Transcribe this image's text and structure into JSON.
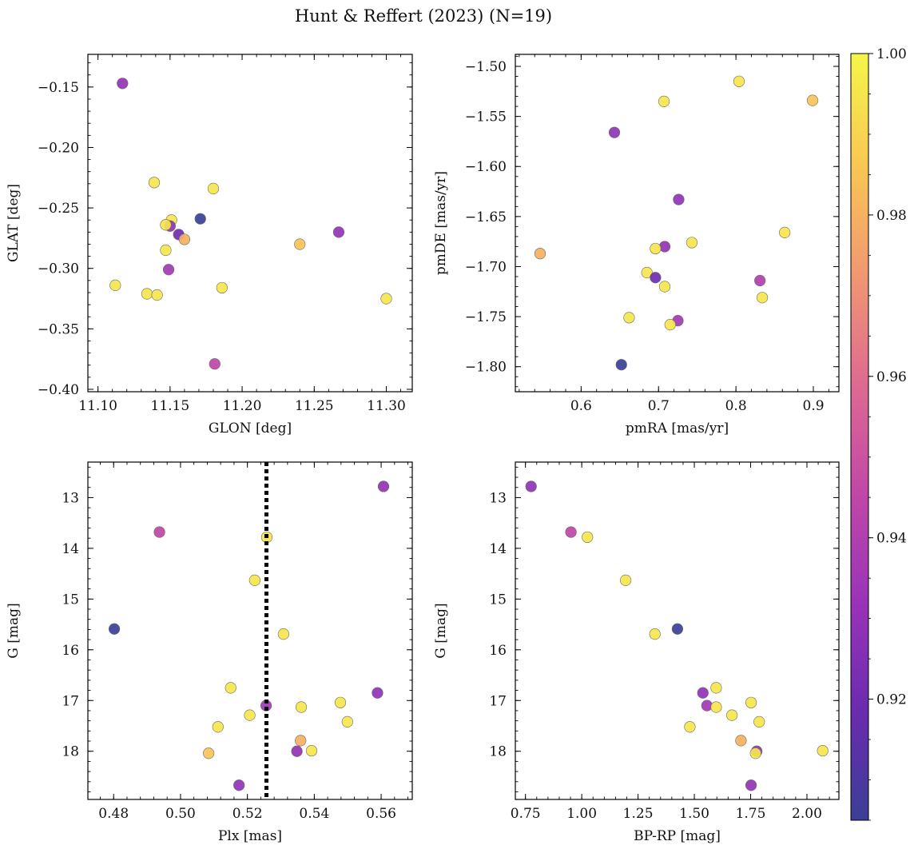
{
  "figure": {
    "title": "Hunt & Reffert (2023) (N=19)"
  },
  "colorbar": {
    "cmap": "plasma",
    "vmin": 0.905,
    "vmax": 1.0,
    "ticks": [
      0.92,
      0.94,
      0.96,
      0.98,
      1.0
    ],
    "tick_labels": [
      "0.92",
      "0.94",
      "0.96",
      "0.98",
      "1.00"
    ]
  },
  "chart_data": [
    {
      "type": "scatter",
      "panel": "top-left",
      "xlabel": "GLON [deg]",
      "ylabel": "GLAT [deg]",
      "xlim": [
        11.093,
        11.318
      ],
      "ylim": [
        -0.402,
        -0.123
      ],
      "xticks": [
        11.1,
        11.15,
        11.2,
        11.25,
        11.3
      ],
      "xtick_labels": [
        "11.10",
        "11.15",
        "11.20",
        "11.25",
        "11.30"
      ],
      "yticks": [
        -0.4,
        -0.35,
        -0.3,
        -0.25,
        -0.2,
        -0.15
      ],
      "ytick_labels": [
        "−0.40",
        "−0.35",
        "−0.30",
        "−0.25",
        "−0.20",
        "−0.15"
      ],
      "x": [
        11.117,
        11.139,
        11.18,
        11.151,
        11.15,
        11.147,
        11.171,
        11.156,
        11.16,
        11.147,
        11.149,
        11.112,
        11.134,
        11.141,
        11.186,
        11.24,
        11.267,
        11.3,
        11.181
      ],
      "y": [
        -0.147,
        -0.229,
        -0.234,
        -0.26,
        -0.265,
        -0.264,
        -0.259,
        -0.272,
        -0.276,
        -0.285,
        -0.301,
        -0.314,
        -0.321,
        -0.322,
        -0.316,
        -0.28,
        -0.27,
        -0.325,
        -0.379
      ],
      "c": [
        0.93,
        0.995,
        0.995,
        0.995,
        0.93,
        0.995,
        0.905,
        0.92,
        0.98,
        0.995,
        0.935,
        0.995,
        0.995,
        0.995,
        0.995,
        0.985,
        0.93,
        0.995,
        0.945
      ]
    },
    {
      "type": "scatter",
      "panel": "top-right",
      "xlabel": "pmRA [mas/yr]",
      "ylabel": "pmDE [mas/yr]",
      "xlim": [
        0.515,
        0.933
      ],
      "ylim": [
        -1.825,
        -1.488
      ],
      "xticks": [
        0.6,
        0.7,
        0.8,
        0.9
      ],
      "xtick_labels": [
        "0.6",
        "0.7",
        "0.8",
        "0.9"
      ],
      "yticks": [
        -1.8,
        -1.75,
        -1.7,
        -1.65,
        -1.6,
        -1.55,
        -1.5
      ],
      "ytick_labels": [
        "−1.80",
        "−1.75",
        "−1.70",
        "−1.65",
        "−1.60",
        "−1.55",
        "−1.50"
      ],
      "x": [
        0.804,
        0.707,
        0.899,
        0.643,
        0.726,
        0.863,
        0.743,
        0.708,
        0.696,
        0.547,
        0.685,
        0.696,
        0.708,
        0.831,
        0.834,
        0.662,
        0.725,
        0.715,
        0.652
      ],
      "y": [
        -1.515,
        -1.535,
        -1.534,
        -1.566,
        -1.633,
        -1.666,
        -1.676,
        -1.68,
        -1.682,
        -1.687,
        -1.706,
        -1.711,
        -1.72,
        -1.714,
        -1.731,
        -1.751,
        -1.754,
        -1.758,
        -1.798
      ],
      "c": [
        0.995,
        0.995,
        0.985,
        0.93,
        0.93,
        0.995,
        0.995,
        0.93,
        0.995,
        0.98,
        0.995,
        0.92,
        0.995,
        0.94,
        0.995,
        0.995,
        0.935,
        0.995,
        0.905
      ]
    },
    {
      "type": "scatter",
      "panel": "bottom-left",
      "xlabel": "Plx [mas]",
      "ylabel": "G [mag]",
      "xlim": [
        0.4723,
        0.5693
      ],
      "ylim": [
        18.95,
        12.3
      ],
      "y_inverted": true,
      "xticks": [
        0.48,
        0.5,
        0.52,
        0.54,
        0.56
      ],
      "xtick_labels": [
        "0.48",
        "0.50",
        "0.52",
        "0.54",
        "0.56"
      ],
      "yticks": [
        13,
        14,
        15,
        16,
        17,
        18
      ],
      "ytick_labels": [
        "13",
        "14",
        "15",
        "16",
        "17",
        "18"
      ],
      "vline": 0.5257,
      "x": [
        0.5607,
        0.4937,
        0.5258,
        0.5222,
        0.4802,
        0.5308,
        0.515,
        0.5589,
        0.5478,
        0.5256,
        0.5361,
        0.5207,
        0.5499,
        0.5112,
        0.5359,
        0.5084,
        0.5348,
        0.5392,
        0.5175
      ],
      "y": [
        12.78,
        13.68,
        13.78,
        14.63,
        15.59,
        15.69,
        16.75,
        16.85,
        17.04,
        17.1,
        17.13,
        17.29,
        17.42,
        17.52,
        17.79,
        18.04,
        18.0,
        17.99,
        18.67
      ],
      "c": [
        0.93,
        0.945,
        0.995,
        0.995,
        0.905,
        0.995,
        0.995,
        0.93,
        0.995,
        0.935,
        0.995,
        0.995,
        0.995,
        0.995,
        0.98,
        0.985,
        0.93,
        0.995,
        0.93
      ]
    },
    {
      "type": "scatter",
      "panel": "bottom-right",
      "xlabel": "BP-RP [mag]",
      "ylabel": "G [mag]",
      "xlim": [
        0.705,
        2.142
      ],
      "ylim": [
        18.95,
        12.3
      ],
      "y_inverted": true,
      "xticks": [
        0.75,
        1.0,
        1.25,
        1.5,
        1.75,
        2.0
      ],
      "xtick_labels": [
        "0.75",
        "1.00",
        "1.25",
        "1.50",
        "1.75",
        "2.00"
      ],
      "yticks": [
        13,
        14,
        15,
        16,
        17,
        18
      ],
      "ytick_labels": [
        "13",
        "14",
        "15",
        "16",
        "17",
        "18"
      ],
      "x": [
        0.775,
        0.952,
        1.025,
        1.195,
        1.425,
        1.325,
        1.597,
        1.538,
        1.752,
        1.556,
        1.597,
        1.667,
        1.788,
        1.48,
        1.707,
        1.777,
        1.772,
        2.07,
        1.752
      ],
      "y": [
        12.78,
        13.68,
        13.78,
        14.63,
        15.59,
        15.69,
        16.75,
        16.85,
        17.04,
        17.1,
        17.13,
        17.29,
        17.42,
        17.52,
        17.79,
        18.0,
        18.04,
        17.99,
        18.67
      ],
      "c": [
        0.93,
        0.945,
        0.995,
        0.995,
        0.905,
        0.995,
        0.995,
        0.93,
        0.995,
        0.935,
        0.995,
        0.995,
        0.995,
        0.995,
        0.98,
        0.93,
        0.995,
        0.995,
        0.93
      ]
    }
  ]
}
